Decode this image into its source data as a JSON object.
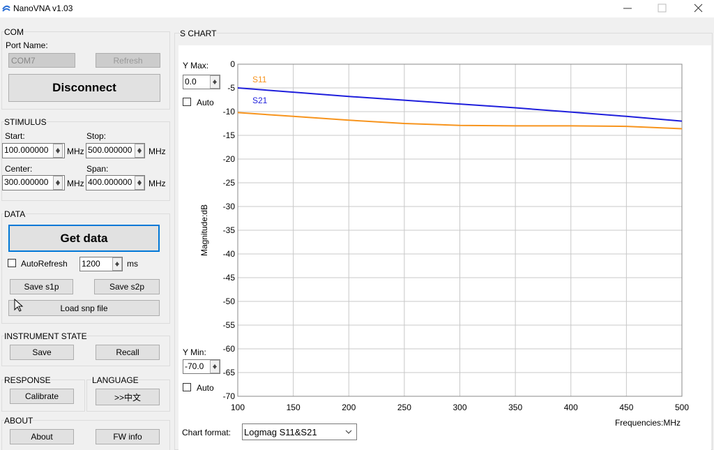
{
  "window": {
    "title": "NanoVNA v1.03"
  },
  "com": {
    "title": "COM",
    "port_label": "Port Name:",
    "port_value": "COM7",
    "refresh": "Refresh",
    "disconnect": "Disconnect"
  },
  "stimulus": {
    "title": "STIMULUS",
    "start_label": "Start:",
    "start_value": "100.000000",
    "stop_label": "Stop:",
    "stop_value": "500.000000",
    "center_label": "Center:",
    "center_value": "300.000000",
    "span_label": "Span:",
    "span_value": "400.000000",
    "unit": "MHz"
  },
  "data": {
    "title": "DATA",
    "get_data": "Get data",
    "auto_refresh": "AutoRefresh",
    "interval": "1200",
    "interval_unit": "ms",
    "save_s1p": "Save s1p",
    "save_s2p": "Save s2p",
    "load_snp": "Load snp file"
  },
  "instrument_state": {
    "title": "INSTRUMENT STATE",
    "save": "Save",
    "recall": "Recall"
  },
  "response": {
    "title": "RESPONSE",
    "calibrate": "Calibrate"
  },
  "language": {
    "title": "LANGUAGE",
    "switch": ">>中文"
  },
  "about": {
    "title": "ABOUT",
    "about": "About",
    "fw_info": "FW info"
  },
  "s_chart": {
    "title": "S CHART",
    "y_max_label": "Y Max:",
    "y_max_value": "0.0",
    "y_min_label": "Y Min:",
    "y_min_value": "-70.0",
    "auto": "Auto",
    "chart_format_label": "Chart format:",
    "chart_format_value": "Logmag S11&S21"
  },
  "chart_data": {
    "type": "line",
    "x_label": "Frequencies:MHz",
    "y_label": "Magnitude:dB",
    "x": [
      100,
      150,
      200,
      250,
      300,
      350,
      400,
      450,
      500
    ],
    "series": [
      {
        "name": "S11",
        "color": "#f7941d",
        "values": [
          -10.2,
          -11,
          -11.8,
          -12.5,
          -12.9,
          -13,
          -13,
          -13.1,
          -13.6
        ]
      },
      {
        "name": "S21",
        "color": "#1f1fdc",
        "values": [
          -5,
          -5.9,
          -6.8,
          -7.6,
          -8.4,
          -9.2,
          -10.1,
          -11,
          -12
        ]
      }
    ],
    "xlim": [
      100,
      500
    ],
    "ylim": [
      -70,
      0
    ],
    "xticks": [
      100,
      150,
      200,
      250,
      300,
      350,
      400,
      450,
      500
    ],
    "yticks": [
      0,
      -5,
      -10,
      -15,
      -20,
      -25,
      -30,
      -35,
      -40,
      -45,
      -50,
      -55,
      -60,
      -65,
      -70
    ],
    "grid": true
  }
}
